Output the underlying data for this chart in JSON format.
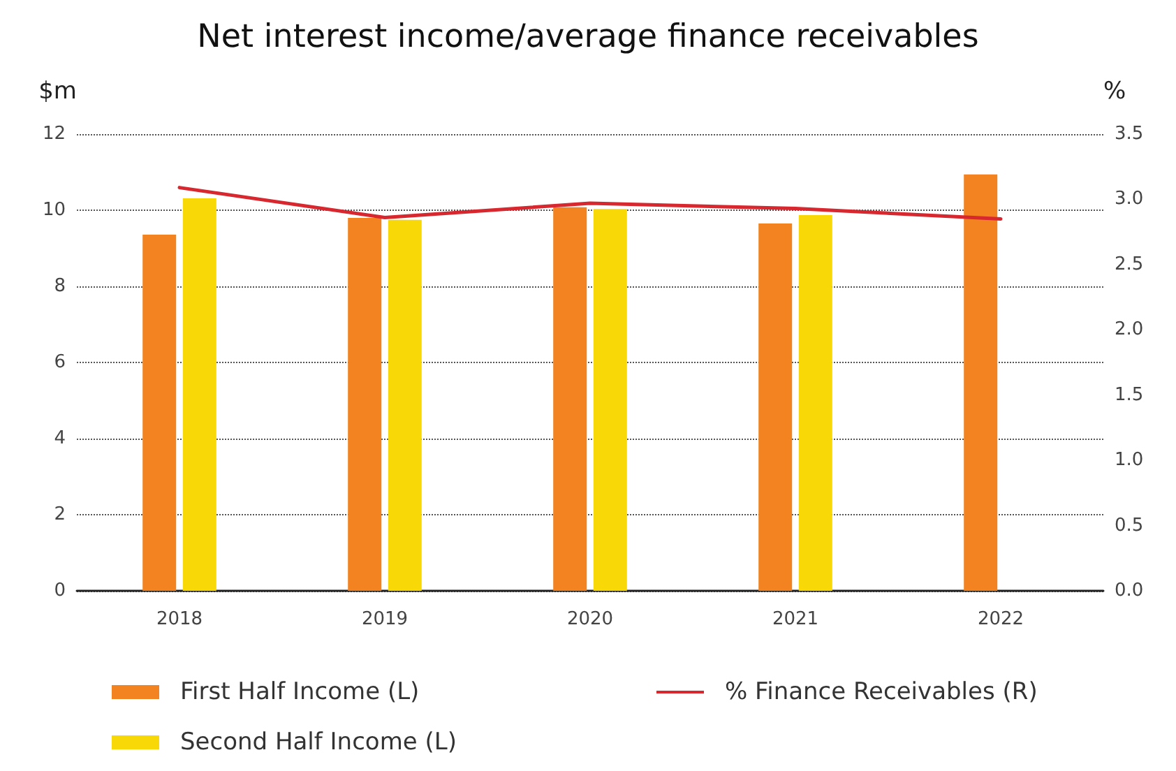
{
  "chart_data": {
    "type": "bar",
    "title": "Net interest income/average finance receivables",
    "ylabel": "$m",
    "y2label": "%",
    "categories": [
      "2018",
      "2019",
      "2020",
      "2021",
      "2022"
    ],
    "series": [
      {
        "name": "First Half Income (L)",
        "color": "#f38321",
        "values": [
          9.36,
          9.8,
          10.08,
          9.65,
          10.94
        ]
      },
      {
        "name": "Second Half Income (L)",
        "color": "#f9d808",
        "values": [
          10.31,
          9.75,
          10.03,
          9.87,
          null
        ]
      },
      {
        "name": "% Finance Receivables (R)",
        "type": "line",
        "axis": "y2",
        "color": "#d7282f",
        "marker": "none",
        "values": [
          3.09,
          2.86,
          2.97,
          2.93,
          2.85
        ]
      }
    ],
    "ylim": [
      0,
      12
    ],
    "yticks": [
      0,
      2,
      4,
      6,
      8,
      10,
      12
    ],
    "y2lim": [
      0,
      3.5
    ],
    "y2ticks": [
      {
        "value": 0,
        "label": "0.0"
      },
      0.5,
      {
        "value": 1,
        "label": "1.0"
      },
      1.5,
      {
        "value": 2,
        "label": "2.0"
      },
      2.5,
      {
        "value": 3,
        "label": "3.0"
      },
      3.5
    ],
    "grid": "y",
    "legend": "bottom"
  }
}
